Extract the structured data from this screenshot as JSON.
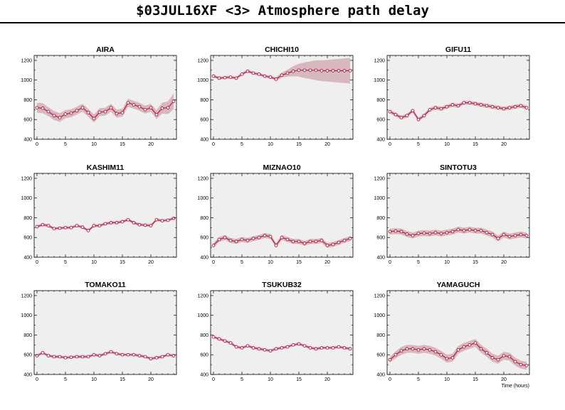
{
  "title": "$03JUL16XF <3>  Atmosphere path delay",
  "colors": {
    "line": "#b3183d",
    "band": "#d7b8bf",
    "plot_bg": "#efefef",
    "marker_fill": "#ffffff"
  },
  "chart_data": [
    {
      "type": "line",
      "title": "AIRA",
      "xlabel": "",
      "ylabel": "",
      "xlim": [
        -0.5,
        24.5
      ],
      "ylim": [
        400,
        1250
      ],
      "xticks": [
        0,
        5,
        10,
        15,
        20
      ],
      "yticks": [
        400,
        600,
        800,
        1000,
        1200
      ],
      "x": [
        0,
        1,
        2,
        3,
        4,
        5,
        6,
        7,
        8,
        9,
        10,
        11,
        12,
        13,
        14,
        15,
        16,
        17,
        18,
        19,
        20,
        21,
        22,
        23,
        24
      ],
      "values": [
        720,
        715,
        680,
        640,
        620,
        655,
        665,
        690,
        720,
        670,
        610,
        675,
        680,
        720,
        660,
        670,
        770,
        750,
        730,
        700,
        720,
        650,
        715,
        720,
        785
      ],
      "band": [
        50,
        50,
        45,
        45,
        45,
        40,
        40,
        40,
        40,
        40,
        40,
        40,
        40,
        40,
        40,
        40,
        40,
        40,
        40,
        40,
        40,
        45,
        55,
        65,
        80
      ]
    },
    {
      "type": "line",
      "title": "CHICHI10",
      "xlabel": "",
      "ylabel": "",
      "xlim": [
        -0.5,
        24.5
      ],
      "ylim": [
        400,
        1250
      ],
      "xticks": [
        0,
        5,
        10,
        15,
        20
      ],
      "yticks": [
        400,
        600,
        800,
        1000,
        1200
      ],
      "x": [
        0,
        1,
        2,
        3,
        4,
        5,
        6,
        7,
        8,
        9,
        10,
        11,
        12,
        13,
        14,
        15,
        16,
        17,
        18,
        19,
        20,
        21,
        22,
        23,
        24
      ],
      "values": [
        1040,
        1020,
        1025,
        1030,
        1020,
        1060,
        1090,
        1070,
        1060,
        1040,
        1030,
        1010,
        1050,
        1070,
        1090,
        1100,
        1100,
        1100,
        1100,
        1095,
        1095,
        1095,
        1095,
        1095,
        1095
      ],
      "band": [
        15,
        15,
        15,
        15,
        15,
        15,
        15,
        15,
        15,
        15,
        15,
        20,
        25,
        35,
        50,
        65,
        80,
        90,
        100,
        105,
        110,
        115,
        120,
        125,
        130
      ]
    },
    {
      "type": "line",
      "title": "GIFU11",
      "xlabel": "",
      "ylabel": "",
      "xlim": [
        -0.5,
        24.5
      ],
      "ylim": [
        400,
        1250
      ],
      "xticks": [
        0,
        5,
        10,
        15,
        20
      ],
      "yticks": [
        400,
        600,
        800,
        1000,
        1200
      ],
      "x": [
        0,
        1,
        2,
        3,
        4,
        5,
        6,
        7,
        8,
        9,
        10,
        11,
        12,
        13,
        14,
        15,
        16,
        17,
        18,
        19,
        20,
        21,
        22,
        23,
        24
      ],
      "values": [
        680,
        650,
        620,
        640,
        690,
        600,
        640,
        700,
        720,
        710,
        730,
        750,
        740,
        770,
        770,
        760,
        750,
        740,
        730,
        720,
        710,
        720,
        730,
        740,
        720
      ],
      "band": [
        20,
        20,
        20,
        20,
        20,
        20,
        20,
        20,
        20,
        20,
        20,
        20,
        20,
        20,
        20,
        20,
        20,
        20,
        20,
        20,
        20,
        20,
        20,
        20,
        20
      ]
    },
    {
      "type": "line",
      "title": "KASHIM11",
      "xlabel": "",
      "ylabel": "",
      "xlim": [
        -0.5,
        24.5
      ],
      "ylim": [
        400,
        1250
      ],
      "xticks": [
        0,
        5,
        10,
        15,
        20
      ],
      "yticks": [
        400,
        600,
        800,
        1000,
        1200
      ],
      "x": [
        0,
        1,
        2,
        3,
        4,
        5,
        6,
        7,
        8,
        9,
        10,
        11,
        12,
        13,
        14,
        15,
        16,
        17,
        18,
        19,
        20,
        21,
        22,
        23,
        24
      ],
      "values": [
        710,
        730,
        720,
        690,
        695,
        700,
        700,
        720,
        705,
        670,
        720,
        720,
        740,
        750,
        750,
        760,
        780,
        750,
        730,
        725,
        720,
        780,
        770,
        775,
        795
      ],
      "band": [
        15,
        15,
        15,
        15,
        15,
        15,
        15,
        15,
        15,
        15,
        15,
        15,
        15,
        15,
        15,
        15,
        15,
        15,
        15,
        15,
        15,
        15,
        15,
        15,
        15
      ]
    },
    {
      "type": "line",
      "title": "MIZNAO10",
      "xlabel": "",
      "ylabel": "",
      "xlim": [
        -0.5,
        24.5
      ],
      "ylim": [
        400,
        1250
      ],
      "xticks": [
        0,
        5,
        10,
        15,
        20
      ],
      "yticks": [
        400,
        600,
        800,
        1000,
        1200
      ],
      "x": [
        0,
        1,
        2,
        3,
        4,
        5,
        6,
        7,
        8,
        9,
        10,
        11,
        12,
        13,
        14,
        15,
        16,
        17,
        18,
        19,
        20,
        21,
        22,
        23,
        24
      ],
      "values": [
        520,
        580,
        600,
        570,
        560,
        580,
        570,
        590,
        600,
        620,
        610,
        520,
        600,
        580,
        560,
        560,
        540,
        560,
        560,
        570,
        520,
        530,
        550,
        570,
        590
      ],
      "band": [
        25,
        25,
        25,
        25,
        25,
        25,
        25,
        25,
        25,
        25,
        25,
        25,
        25,
        25,
        25,
        25,
        25,
        25,
        25,
        25,
        25,
        25,
        25,
        25,
        25
      ]
    },
    {
      "type": "line",
      "title": "SINTOTU3",
      "xlabel": "",
      "ylabel": "",
      "xlim": [
        -0.5,
        24.5
      ],
      "ylim": [
        400,
        1250
      ],
      "xticks": [
        0,
        5,
        10,
        15,
        20
      ],
      "yticks": [
        400,
        600,
        800,
        1000,
        1200
      ],
      "x": [
        0,
        1,
        2,
        3,
        4,
        5,
        6,
        7,
        8,
        9,
        10,
        11,
        12,
        13,
        14,
        15,
        16,
        17,
        18,
        19,
        20,
        21,
        22,
        23,
        24
      ],
      "values": [
        660,
        665,
        660,
        635,
        620,
        640,
        645,
        640,
        650,
        640,
        650,
        660,
        680,
        670,
        680,
        670,
        670,
        650,
        630,
        590,
        630,
        610,
        620,
        630,
        620
      ],
      "band": [
        30,
        30,
        30,
        30,
        30,
        30,
        30,
        30,
        30,
        30,
        30,
        30,
        30,
        30,
        30,
        30,
        30,
        30,
        30,
        30,
        30,
        30,
        30,
        30,
        30
      ]
    },
    {
      "type": "line",
      "title": "TOMAKO11",
      "xlabel": "",
      "ylabel": "",
      "xlim": [
        -0.5,
        24.5
      ],
      "ylim": [
        400,
        1250
      ],
      "xticks": [
        0,
        5,
        10,
        15,
        20
      ],
      "yticks": [
        400,
        600,
        800,
        1000,
        1200
      ],
      "x": [
        0,
        1,
        2,
        3,
        4,
        5,
        6,
        7,
        8,
        9,
        10,
        11,
        12,
        13,
        14,
        15,
        16,
        17,
        18,
        19,
        20,
        21,
        22,
        23,
        24
      ],
      "values": [
        590,
        620,
        590,
        580,
        580,
        570,
        575,
        580,
        580,
        580,
        600,
        590,
        610,
        630,
        610,
        600,
        600,
        600,
        590,
        580,
        560,
        570,
        580,
        600,
        590
      ],
      "band": [
        15,
        15,
        15,
        15,
        15,
        15,
        15,
        15,
        15,
        15,
        15,
        15,
        15,
        15,
        15,
        15,
        15,
        15,
        15,
        15,
        15,
        15,
        15,
        15,
        15
      ]
    },
    {
      "type": "line",
      "title": "TSUKUB32",
      "xlabel": "",
      "ylabel": "",
      "xlim": [
        -0.5,
        24.5
      ],
      "ylim": [
        400,
        1250
      ],
      "xticks": [
        0,
        5,
        10,
        15,
        20
      ],
      "yticks": [
        400,
        600,
        800,
        1000,
        1200
      ],
      "x": [
        0,
        1,
        2,
        3,
        4,
        5,
        6,
        7,
        8,
        9,
        10,
        11,
        12,
        13,
        14,
        15,
        16,
        17,
        18,
        19,
        20,
        21,
        22,
        23,
        24
      ],
      "values": [
        780,
        760,
        740,
        720,
        680,
        670,
        690,
        670,
        660,
        650,
        640,
        660,
        670,
        680,
        700,
        710,
        690,
        670,
        660,
        670,
        670,
        670,
        680,
        670,
        660
      ],
      "band": [
        15,
        15,
        15,
        15,
        15,
        15,
        15,
        15,
        15,
        15,
        15,
        15,
        15,
        15,
        15,
        15,
        15,
        15,
        15,
        15,
        15,
        15,
        15,
        15,
        15
      ]
    },
    {
      "type": "line",
      "title": "YAMAGUCH",
      "xlabel": "Time (hours)",
      "ylabel": "",
      "xlim": [
        -0.5,
        24.5
      ],
      "ylim": [
        400,
        1250
      ],
      "xticks": [
        0,
        5,
        10,
        15,
        20
      ],
      "yticks": [
        400,
        600,
        800,
        1000,
        1200
      ],
      "x": [
        0,
        1,
        2,
        3,
        4,
        5,
        6,
        7,
        8,
        9,
        10,
        11,
        12,
        13,
        14,
        15,
        16,
        17,
        18,
        19,
        20,
        21,
        22,
        23,
        24
      ],
      "values": [
        550,
        600,
        640,
        660,
        660,
        650,
        660,
        650,
        630,
        600,
        560,
        570,
        650,
        680,
        700,
        720,
        660,
        620,
        570,
        550,
        590,
        580,
        530,
        500,
        490
      ],
      "band": [
        30,
        35,
        40,
        40,
        40,
        40,
        40,
        40,
        40,
        40,
        40,
        40,
        40,
        40,
        40,
        40,
        40,
        40,
        40,
        40,
        40,
        40,
        40,
        40,
        40
      ]
    }
  ]
}
